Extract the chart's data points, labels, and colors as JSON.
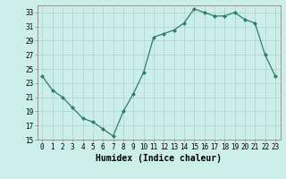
{
  "x": [
    0,
    1,
    2,
    3,
    4,
    5,
    6,
    7,
    8,
    9,
    10,
    11,
    12,
    13,
    14,
    15,
    16,
    17,
    18,
    19,
    20,
    21,
    22,
    23
  ],
  "y": [
    24.0,
    22.0,
    21.0,
    19.5,
    18.0,
    17.5,
    16.5,
    15.5,
    19.0,
    21.5,
    24.5,
    29.5,
    30.0,
    30.5,
    31.5,
    33.5,
    33.0,
    32.5,
    32.5,
    33.0,
    32.0,
    31.5,
    27.0,
    24.0
  ],
  "line_color": "#2d7d6b",
  "marker": "D",
  "markersize": 2.0,
  "linewidth": 0.9,
  "bg_color": "#cceee8",
  "grid_color": "#b0d8d0",
  "xlabel": "Humidex (Indice chaleur)",
  "ylim": [
    15,
    34
  ],
  "yticks": [
    15,
    17,
    19,
    21,
    23,
    25,
    27,
    29,
    31,
    33
  ],
  "xticks": [
    0,
    1,
    2,
    3,
    4,
    5,
    6,
    7,
    8,
    9,
    10,
    11,
    12,
    13,
    14,
    15,
    16,
    17,
    18,
    19,
    20,
    21,
    22,
    23
  ],
  "tick_fontsize": 5.5,
  "xlabel_fontsize": 7.0
}
